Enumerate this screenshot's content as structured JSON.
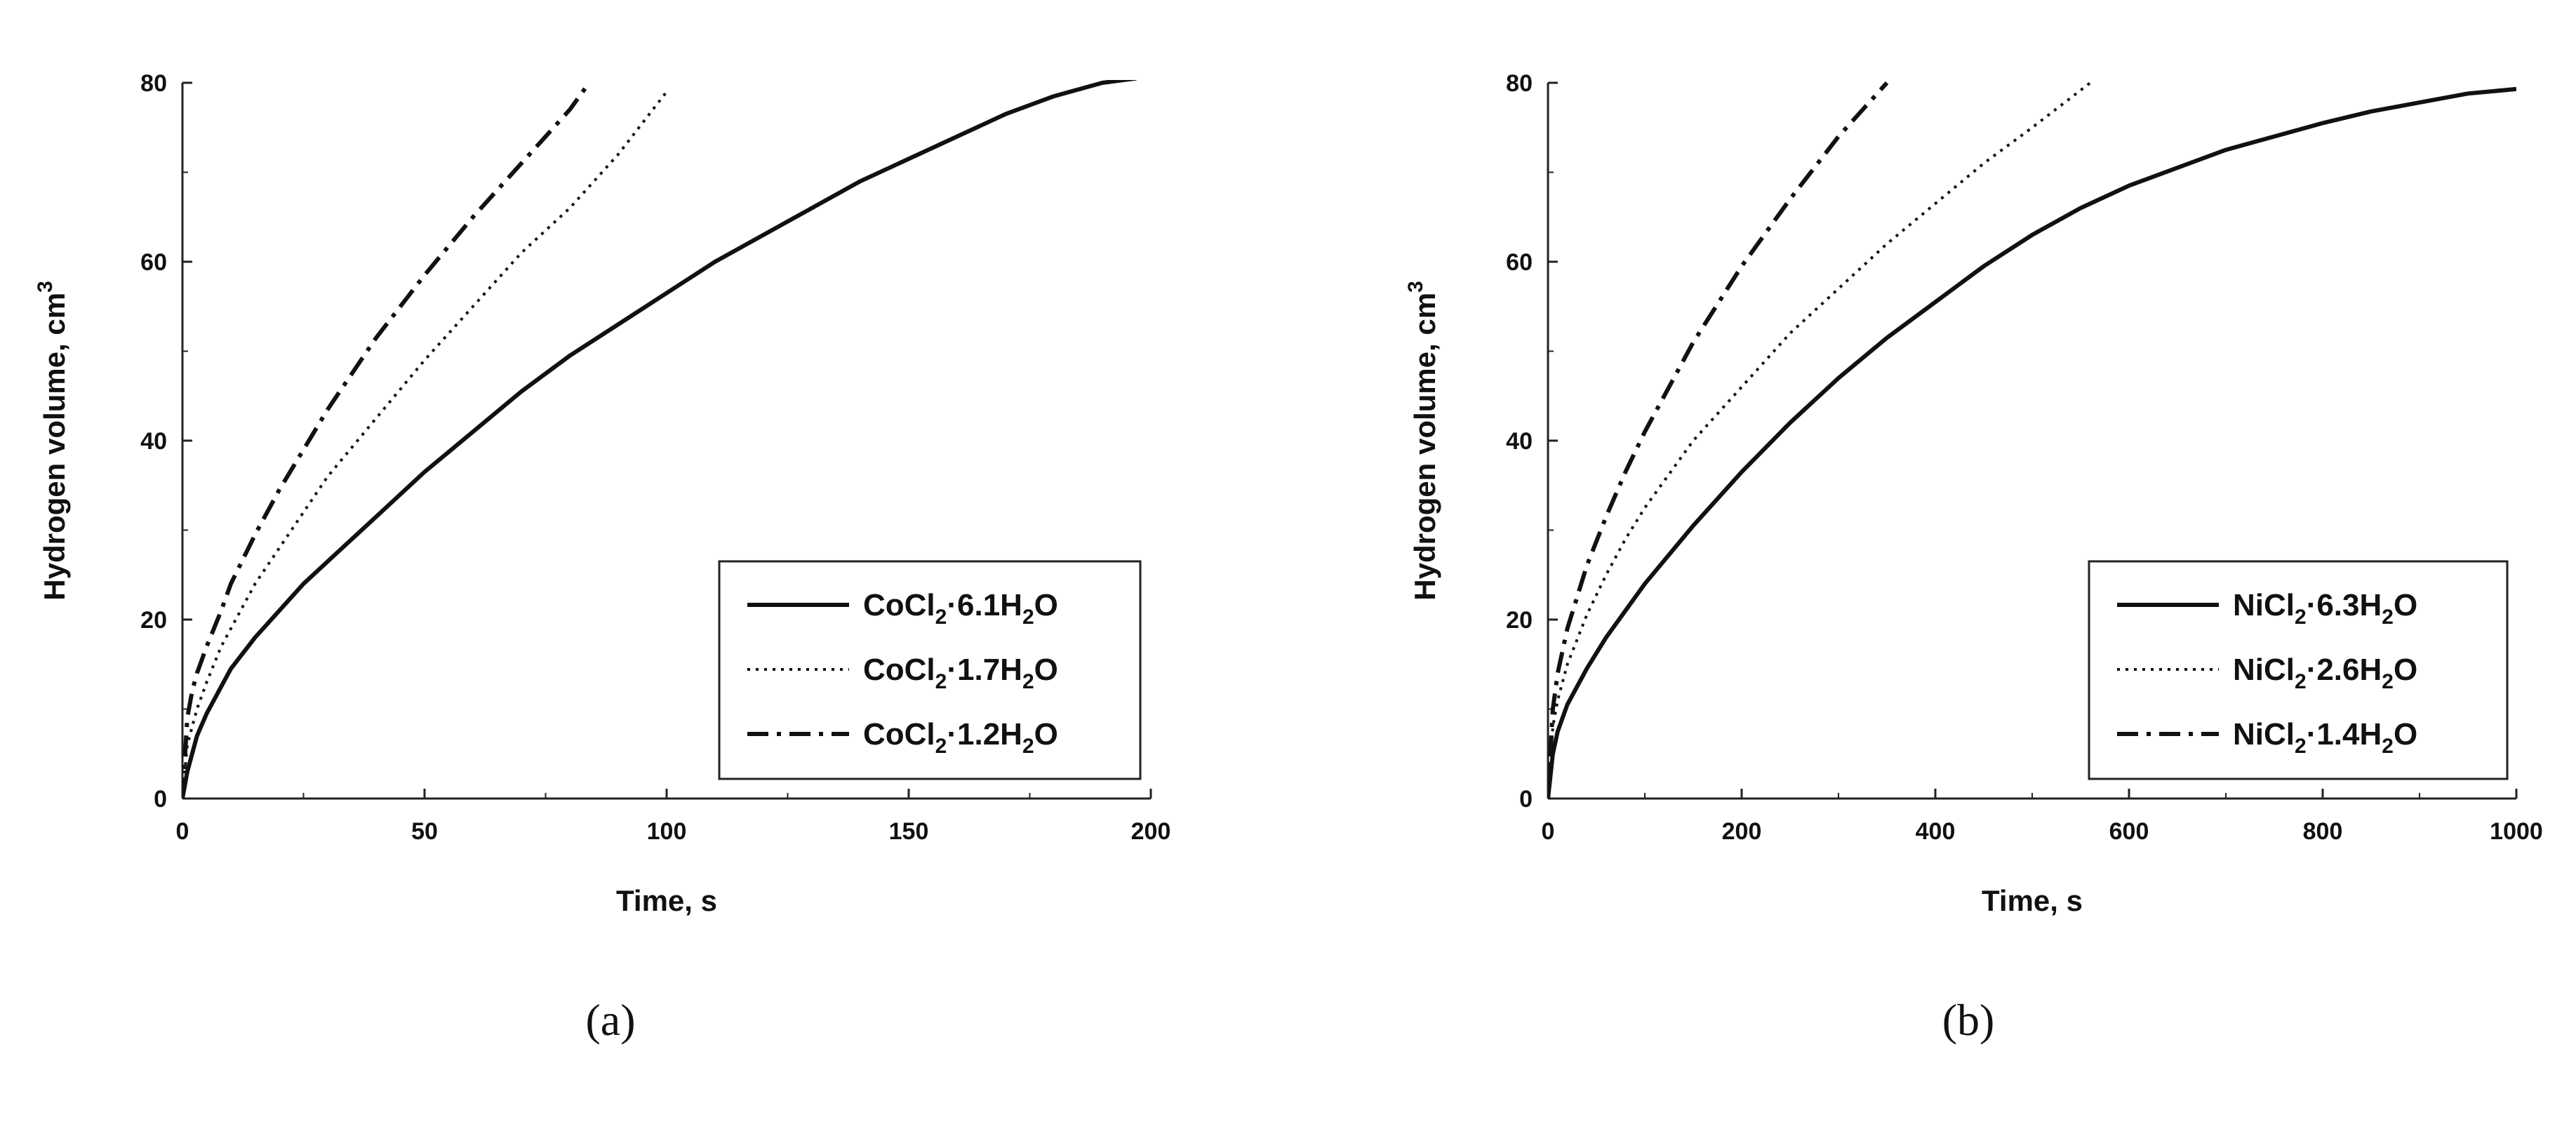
{
  "colors": {
    "line": "#111111",
    "background": "#ffffff",
    "frame": "#222222"
  },
  "chart_data": [
    {
      "type": "line",
      "panel_label": "(a)",
      "xlabel": "Time, s",
      "ylabel": "Hydrogen volume, cm",
      "ylabel_sup": "3",
      "xlim": [
        0,
        200
      ],
      "ylim": [
        0,
        80
      ],
      "xticks": [
        "0",
        "50",
        "100",
        "150",
        "200"
      ],
      "yticks": [
        "0",
        "20",
        "40",
        "60",
        "80"
      ],
      "legend_position": "bottom-right",
      "series": [
        {
          "name": "CoCl2·6.1H2O",
          "label_parts": [
            "CoCl",
            "2",
            "·6.1H",
            "2",
            "O"
          ],
          "style": "solid",
          "x": [
            0,
            1,
            2,
            3,
            5,
            8,
            10,
            15,
            20,
            25,
            30,
            40,
            50,
            60,
            70,
            80,
            90,
            100,
            110,
            120,
            130,
            140,
            150,
            160,
            170,
            180,
            190,
            197
          ],
          "y": [
            0,
            3,
            5,
            7,
            9.5,
            12.5,
            14.5,
            18,
            21,
            24,
            26.5,
            31.5,
            36.5,
            41,
            45.5,
            49.5,
            53,
            56.5,
            60,
            63,
            66,
            69,
            71.5,
            74,
            76.5,
            78.5,
            80,
            80.5
          ]
        },
        {
          "name": "CoCl2·1.7H2O",
          "label_parts": [
            "CoCl",
            "2",
            "·1.7H",
            "2",
            "O"
          ],
          "style": "dotted",
          "x": [
            0,
            1,
            2,
            3,
            5,
            8,
            10,
            15,
            20,
            25,
            30,
            40,
            50,
            60,
            70,
            80,
            90,
            100
          ],
          "y": [
            0,
            6,
            8,
            10,
            13,
            17,
            19,
            24,
            28,
            32,
            36,
            42.5,
            49,
            55,
            61,
            66,
            72,
            79
          ]
        },
        {
          "name": "CoCl2·1.2H2O",
          "label_parts": [
            "CoCl",
            "2",
            "·1.2H",
            "2",
            "O"
          ],
          "style": "dashdot",
          "x": [
            0,
            1,
            2,
            3,
            5,
            8,
            10,
            15,
            20,
            25,
            30,
            40,
            50,
            60,
            70,
            80,
            84
          ],
          "y": [
            0,
            9,
            12,
            14,
            17,
            21,
            24,
            29.5,
            34.5,
            39,
            43.5,
            51.5,
            58.5,
            65,
            71,
            77,
            80
          ]
        }
      ]
    },
    {
      "type": "line",
      "panel_label": "(b)",
      "xlabel": "Time, s",
      "ylabel": "Hydrogen volume, cm",
      "ylabel_sup": "3",
      "xlim": [
        0,
        1000
      ],
      "ylim": [
        0,
        80
      ],
      "xticks": [
        "0",
        "200",
        "400",
        "600",
        "800",
        "1000"
      ],
      "yticks": [
        "0",
        "20",
        "40",
        "60",
        "80"
      ],
      "legend_position": "bottom-right",
      "series": [
        {
          "name": "NiCl2·6.3H2O",
          "label_parts": [
            "NiCl",
            "2",
            "·6.3H",
            "2",
            "O"
          ],
          "style": "solid",
          "x": [
            0,
            5,
            10,
            20,
            40,
            60,
            80,
            100,
            150,
            200,
            250,
            300,
            350,
            400,
            450,
            500,
            550,
            600,
            650,
            700,
            750,
            800,
            850,
            900,
            950,
            1000
          ],
          "y": [
            0,
            5,
            7.5,
            10.5,
            14.5,
            18,
            21,
            24,
            30.5,
            36.5,
            42,
            47,
            51.5,
            55.5,
            59.5,
            63,
            66,
            68.5,
            70.5,
            72.5,
            74,
            75.5,
            76.8,
            77.8,
            78.8,
            79.3
          ]
        },
        {
          "name": "NiCl2·2.6H2O",
          "label_parts": [
            "NiCl",
            "2",
            "·2.6H",
            "2",
            "O"
          ],
          "style": "dotted",
          "x": [
            0,
            5,
            10,
            20,
            40,
            60,
            80,
            100,
            150,
            200,
            250,
            300,
            350,
            400,
            450,
            500,
            560
          ],
          "y": [
            0,
            8,
            11,
            15,
            20.5,
            25,
            29,
            32.5,
            40,
            46,
            52,
            57,
            62,
            66.5,
            71,
            75,
            80
          ]
        },
        {
          "name": "NiCl2·1.4H2O",
          "label_parts": [
            "NiCl",
            "2",
            "·1.4H",
            "2",
            "O"
          ],
          "style": "dashdot",
          "x": [
            0,
            5,
            10,
            20,
            40,
            60,
            80,
            100,
            150,
            200,
            250,
            300,
            350
          ],
          "y": [
            0,
            10,
            14,
            19,
            26,
            31.5,
            36.5,
            41,
            51,
            59.5,
            67,
            74,
            80
          ]
        }
      ]
    }
  ]
}
